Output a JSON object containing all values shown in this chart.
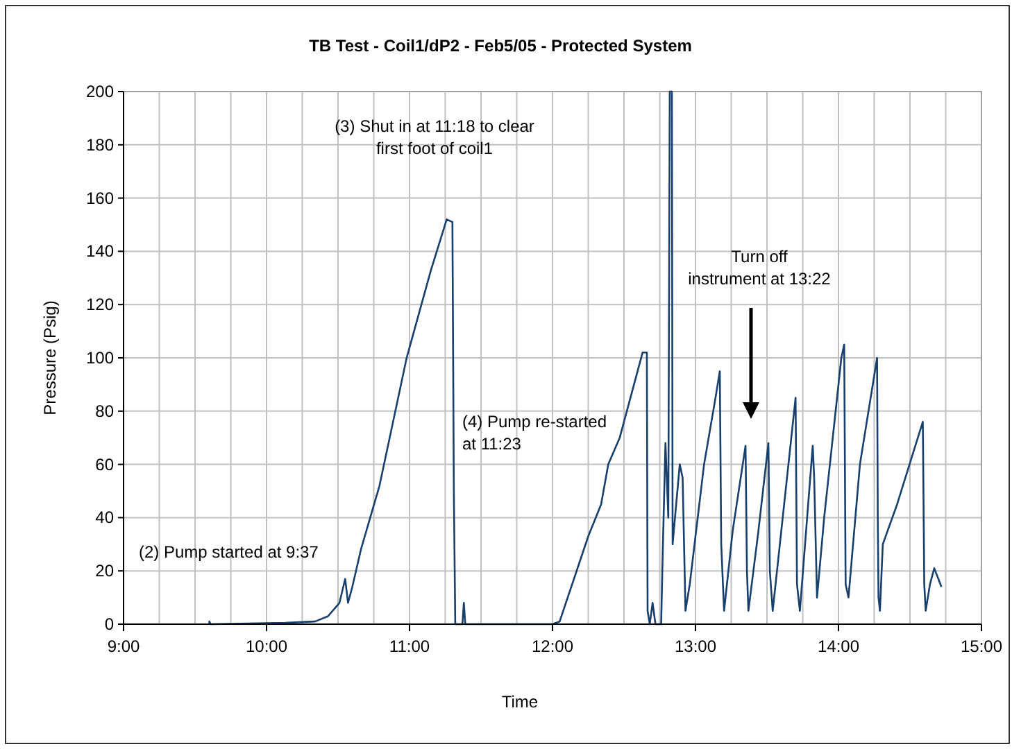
{
  "chart_data": {
    "type": "line",
    "title": "TB Test - Coil1/dP2 - Feb5/05 - Protected System",
    "xlabel": "Time",
    "ylabel": "Pressure (Psig)",
    "annotations": [
      "(2) Pump started at 9:37",
      "(3) Shut in at 11:18 to clear\nfirst foot of coil1",
      "(4) Pump re-started\nat 11:23",
      "Turn off instrument at 13:22"
    ],
    "xlim": [
      9,
      15
    ],
    "xticks": [
      {
        "value": 9,
        "label": "9:00"
      },
      {
        "value": 9.25,
        "label": null
      },
      {
        "value": 9.5,
        "label": null
      },
      {
        "value": 9.75,
        "label": null
      },
      {
        "value": 10,
        "label": "10:00"
      },
      {
        "value": 10.25,
        "label": null
      },
      {
        "value": 10.5,
        "label": null
      },
      {
        "value": 10.75,
        "label": null
      },
      {
        "value": 11,
        "label": "11:00"
      },
      {
        "value": 11.25,
        "label": null
      },
      {
        "value": 11.5,
        "label": null
      },
      {
        "value": 11.75,
        "label": null
      },
      {
        "value": 12,
        "label": "12:00"
      },
      {
        "value": 12.25,
        "label": null
      },
      {
        "value": 12.5,
        "label": null
      },
      {
        "value": 12.75,
        "label": null
      },
      {
        "value": 13,
        "label": "13:00"
      },
      {
        "value": 13.25,
        "label": null
      },
      {
        "value": 13.5,
        "label": null
      },
      {
        "value": 13.75,
        "label": null
      },
      {
        "value": 14,
        "label": "14:00"
      },
      {
        "value": 14.25,
        "label": null
      },
      {
        "value": 14.5,
        "label": null
      },
      {
        "value": 14.75,
        "label": null
      },
      {
        "value": 15,
        "label": "15:00"
      }
    ],
    "ylim": [
      0,
      200
    ],
    "yticks": [
      0,
      20,
      40,
      60,
      80,
      100,
      120,
      140,
      160,
      180,
      200
    ],
    "grid": true,
    "series": [
      {
        "color": "#17406d",
        "x": [
          9.6,
          9.6,
          9.61,
          10.13,
          10.34,
          10.43,
          10.51,
          10.55,
          10.57,
          10.6,
          10.66,
          10.79,
          10.98,
          11.15,
          11.26,
          11.3,
          11.31,
          11.32,
          11.37,
          11.38,
          11.39,
          12.0,
          12.05,
          12.15,
          12.25,
          12.34,
          12.39,
          12.47,
          12.63,
          12.66,
          12.665,
          12.68,
          12.7,
          12.72,
          12.76,
          12.77,
          12.79,
          12.81,
          12.82,
          12.835,
          12.84,
          12.89,
          12.91,
          12.93,
          12.96,
          13.06,
          13.14,
          13.17,
          13.18,
          13.2,
          13.26,
          13.35,
          13.36,
          13.37,
          13.44,
          13.51,
          13.52,
          13.54,
          13.64,
          13.7,
          13.71,
          13.73,
          13.82,
          13.83,
          13.85,
          13.9,
          14.02,
          14.04,
          14.05,
          14.07,
          14.15,
          14.27,
          14.275,
          14.28,
          14.29,
          14.31,
          14.41,
          14.59,
          14.6,
          14.61,
          14.64,
          14.67,
          14.72
        ],
        "values": [
          0,
          1,
          0,
          0.5,
          1,
          3,
          8,
          17,
          8,
          14,
          28,
          52,
          100,
          133,
          152,
          151,
          50,
          0,
          0,
          8,
          0,
          0,
          1,
          17,
          33,
          45,
          60,
          70,
          102,
          102,
          5,
          0,
          8,
          0,
          0,
          25,
          68,
          40,
          200,
          200,
          30,
          60,
          55,
          5,
          15,
          60,
          85,
          95,
          30,
          5,
          35,
          67,
          20,
          5,
          35,
          68,
          20,
          5,
          55,
          85,
          15,
          5,
          67,
          55,
          10,
          40,
          100,
          105,
          15,
          10,
          60,
          100,
          40,
          10,
          5,
          30,
          45,
          76,
          15,
          5,
          15,
          21,
          14
        ]
      }
    ]
  }
}
